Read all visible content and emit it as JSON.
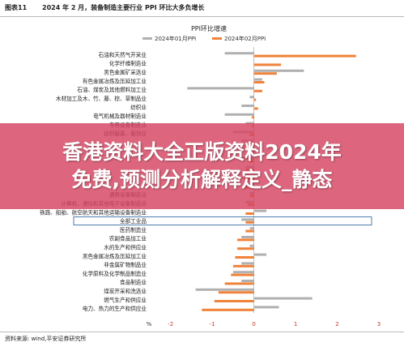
{
  "header": {
    "figure_label": "图表11",
    "figure_title": "2024 年 2 月，装备制造主要行业 PPI 环比大多负增长"
  },
  "footer": {
    "source": "资料来源: wind,平安证券研究所"
  },
  "overlay": {
    "line1": "香港资料大全正版资料2024年",
    "line2": "免费,预测分析解释定义_静态"
  },
  "chart_data": {
    "type": "bar",
    "orientation": "horizontal",
    "title": "PPI环比增速",
    "xlabel": "",
    "unit": "%",
    "xlim": [
      -2.5,
      3
    ],
    "xticks": [
      -2,
      -1,
      0,
      1,
      2,
      3
    ],
    "legend_position": "top",
    "highlight": "全部工业品",
    "categories": [
      "石油和天然气开采业",
      "化学纤维制造业",
      "黑色金属矿采选业",
      "有色金属冶炼及压延加工业",
      "石油、煤炭及其他燃料加工业",
      "木材加工及木、竹、藤、棕、草制品业",
      "纺织业",
      "电气机械及器材制造业",
      "专用设备制造业",
      "纺织服装、服饰业",
      "",
      "",
      "",
      "",
      "",
      "",
      "通用设备制造业",
      "计算机、通信和其他电子设备制造业",
      "铁路、船舶、航空航天和其他运输设备制造业",
      "全部工业品",
      "医药制造业",
      "农副食品加工业",
      "水的生产和供应业",
      "黑色金属冶炼及压延加工业",
      "非金属矿物制品业",
      "化学原料及化学制品制造业",
      "食品制造业",
      "煤炭开采和洗选业",
      "燃气生产和供应业",
      "电力、热力的生产和供应业"
    ],
    "series": [
      {
        "name": "2024年01月PPI",
        "color": "#b0b0b0",
        "values": [
          -0.7,
          0.0,
          1.2,
          0.2,
          -1.6,
          -0.1,
          -0.3,
          -0.7,
          -0.2,
          -0.5,
          -0.3,
          -0.4,
          -0.3,
          -0.2,
          -0.3,
          -0.2,
          -0.1,
          -0.2,
          0.3,
          -0.3,
          -0.1,
          -0.3,
          -0.1,
          0.3,
          -0.3,
          -0.5,
          -0.3,
          -1.4,
          1.4,
          0.6
        ]
      },
      {
        "name": "2024年02月PPI",
        "color": "#f0823a",
        "values": [
          2.45,
          0.65,
          0.55,
          0.25,
          0.2,
          0.05,
          0.1,
          -0.05,
          -0.05,
          -0.1,
          -0.1,
          -0.1,
          -0.15,
          -0.2,
          -0.25,
          -0.3,
          -0.1,
          -0.15,
          -0.2,
          -0.2,
          -0.2,
          -0.4,
          -0.4,
          -0.45,
          -0.5,
          -0.55,
          -0.7,
          -0.85,
          -0.95,
          -1.25
        ]
      }
    ]
  }
}
